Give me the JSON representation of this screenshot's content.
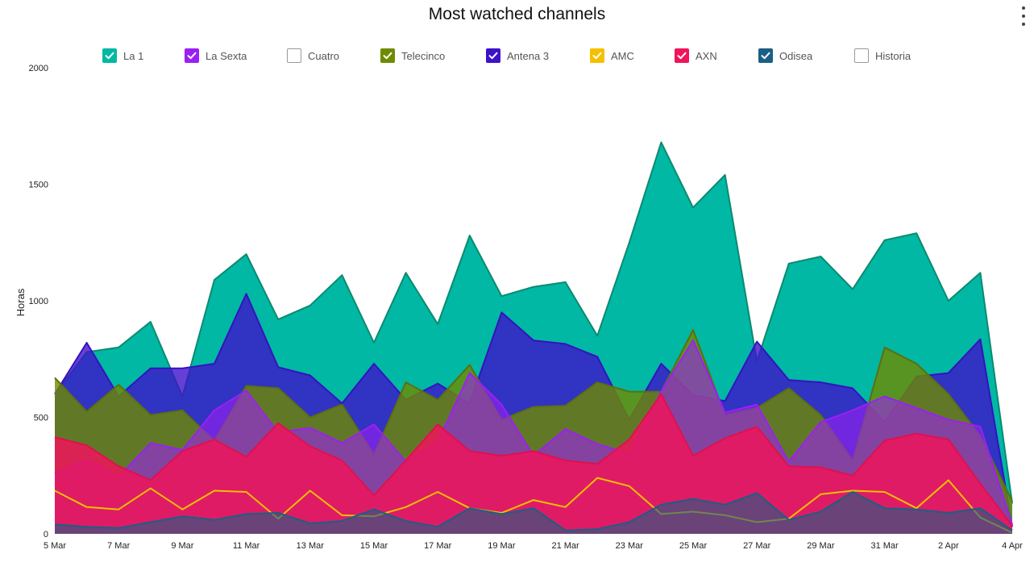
{
  "menu": {
    "icon": "kebab-menu-icon"
  },
  "legend": [
    {
      "name": "La 1",
      "color": "#00B8A4",
      "stroke": "#0C8A70",
      "checked": true
    },
    {
      "name": "La Sexta",
      "color": "#9B20F2",
      "stroke": "#9B20F2",
      "checked": true
    },
    {
      "name": "Cuatro",
      "color": "#FFFFFF",
      "stroke": "#999999",
      "checked": false
    },
    {
      "name": "Telecinco",
      "color": "#6E8B00",
      "stroke": "#5C6F10",
      "checked": true
    },
    {
      "name": "Antena 3",
      "color": "#3D12C9",
      "stroke": "#3512C0",
      "checked": true
    },
    {
      "name": "AMC",
      "color": "#F5C000",
      "stroke": "#F0C000",
      "checked": true
    },
    {
      "name": "AXN",
      "color": "#F0145A",
      "stroke": "#E0104E",
      "checked": true
    },
    {
      "name": "Odisea",
      "color": "#1B5F86",
      "stroke": "#1B5F86",
      "checked": true
    },
    {
      "name": "Historia",
      "color": "#FFFFFF",
      "stroke": "#999999",
      "checked": false
    }
  ],
  "chart_data": {
    "type": "area",
    "title": "Most watched channels",
    "xlabel": "",
    "ylabel": "Horas",
    "ylim": [
      0,
      2000
    ],
    "yticks": [
      0,
      500,
      1000,
      1500,
      2000
    ],
    "x": [
      "5 Mar",
      "6 Mar",
      "7 Mar",
      "8 Mar",
      "9 Mar",
      "10 Mar",
      "11 Mar",
      "12 Mar",
      "13 Mar",
      "14 Mar",
      "15 Mar",
      "16 Mar",
      "17 Mar",
      "18 Mar",
      "19 Mar",
      "20 Mar",
      "21 Mar",
      "22 Mar",
      "23 Mar",
      "24 Mar",
      "25 Mar",
      "26 Mar",
      "27 Mar",
      "28 Mar",
      "29 Mar",
      "30 Mar",
      "31 Mar",
      "1 Apr",
      "2 Apr",
      "3 Apr",
      "4 Apr"
    ],
    "xticks": [
      "5 Mar",
      "7 Mar",
      "9 Mar",
      "11 Mar",
      "13 Mar",
      "15 Mar",
      "17 Mar",
      "19 Mar",
      "21 Mar",
      "23 Mar",
      "25 Mar",
      "27 Mar",
      "29 Mar",
      "31 Mar",
      "2 Apr",
      "4 Apr"
    ],
    "overlapping": true,
    "grid": false,
    "legend_position": "top",
    "series": [
      {
        "name": "La 1",
        "color": "#00B8A4",
        "stroke": "#0C8A70",
        "opacity": 1.0,
        "values": [
          600,
          780,
          800,
          910,
          590,
          1090,
          1200,
          920,
          980,
          1110,
          820,
          1120,
          900,
          1280,
          1020,
          1060,
          1080,
          850,
          1250,
          1680,
          1400,
          1540,
          740,
          1160,
          1190,
          1050,
          1260,
          1290,
          1000,
          1120,
          130
        ]
      },
      {
        "name": "Antena 3",
        "color": "#3D12C9",
        "stroke": "#3512C0",
        "opacity": 0.8,
        "values": [
          600,
          820,
          590,
          710,
          710,
          730,
          1030,
          715,
          680,
          560,
          730,
          575,
          645,
          560,
          950,
          830,
          815,
          760,
          490,
          730,
          595,
          570,
          825,
          660,
          650,
          625,
          480,
          675,
          690,
          835,
          30
        ]
      },
      {
        "name": "Telecinco",
        "color": "#6E8B00",
        "stroke": "#5C6F10",
        "opacity": 0.8,
        "values": [
          670,
          525,
          640,
          510,
          530,
          400,
          635,
          625,
          500,
          555,
          340,
          650,
          575,
          725,
          490,
          545,
          550,
          650,
          610,
          610,
          875,
          510,
          540,
          625,
          510,
          315,
          800,
          730,
          600,
          420,
          140
        ]
      },
      {
        "name": "La Sexta",
        "color": "#9B20F2",
        "stroke": "#9B20F2",
        "opacity": 0.6,
        "values": [
          260,
          320,
          245,
          390,
          360,
          530,
          615,
          435,
          455,
          390,
          470,
          310,
          395,
          690,
          555,
          335,
          450,
          385,
          345,
          610,
          830,
          520,
          555,
          310,
          480,
          530,
          590,
          540,
          490,
          460,
          40
        ]
      },
      {
        "name": "AXN",
        "color": "#F0145A",
        "stroke": "#E0104E",
        "opacity": 0.85,
        "values": [
          415,
          380,
          290,
          230,
          355,
          405,
          330,
          475,
          375,
          315,
          165,
          315,
          470,
          355,
          335,
          355,
          315,
          300,
          405,
          600,
          335,
          410,
          460,
          290,
          285,
          250,
          400,
          430,
          405,
          215,
          35
        ]
      },
      {
        "name": "AMC",
        "color": "#F5C000",
        "stroke": "#F0C000",
        "opacity": 0.0,
        "values": [
          185,
          115,
          105,
          195,
          105,
          185,
          180,
          65,
          185,
          80,
          75,
          115,
          180,
          110,
          90,
          145,
          115,
          240,
          205,
          85,
          95,
          80,
          50,
          65,
          170,
          185,
          180,
          110,
          230,
          70,
          5
        ]
      },
      {
        "name": "Odisea",
        "color": "#1B5F86",
        "stroke": "#1B5F86",
        "opacity": 0.6,
        "values": [
          40,
          30,
          25,
          50,
          75,
          60,
          85,
          90,
          45,
          55,
          105,
          55,
          30,
          110,
          85,
          110,
          15,
          20,
          50,
          125,
          150,
          125,
          175,
          60,
          95,
          180,
          110,
          105,
          90,
          110,
          15
        ]
      }
    ]
  }
}
